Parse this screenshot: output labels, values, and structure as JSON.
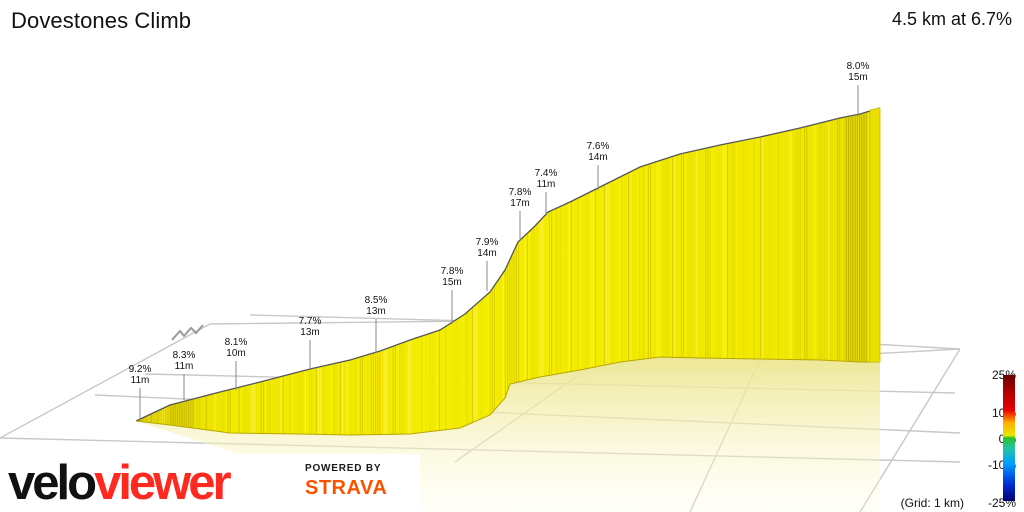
{
  "title": "Dovestones Climb",
  "summary": "4.5 km at 6.7%",
  "scale": {
    "labels": [
      "25%",
      "10%",
      "0%",
      "-10%",
      "-25%"
    ],
    "grid_note": "(Grid: 1 km)"
  },
  "branding": {
    "logo_velo": "velo",
    "logo_viewer": "viewer",
    "powered_by": "POWERED BY",
    "strava": "STRAVA"
  },
  "colors": {
    "profile_fill": "#f4ee00",
    "profile_dark": "#b8a600",
    "ground_shadow": "#f4f0a6",
    "grid": "#c8c8c8",
    "logo_accent": "#ff2a1f",
    "strava": "#fc5200"
  },
  "chart_data": {
    "type": "area",
    "title": "Dovestones Climb",
    "subtitle": "4.5 km at 6.7%",
    "distance_km": 4.5,
    "average_gradient_pct": 6.7,
    "gradient_color_scale": {
      "min_pct": -25,
      "max_pct": 25,
      "ticks": [
        25,
        10,
        0,
        -10,
        -25
      ],
      "colors": [
        "#6b0000",
        "#b30000",
        "#ea0000",
        "#ffb000",
        "#e8e800",
        "#28c028",
        "#23c3a1",
        "#00a0ff",
        "#0030d8",
        "#000070"
      ]
    },
    "grid": true,
    "grid_spacing_km": 1,
    "annotations": [
      {
        "gradient": "9.2%",
        "length": "11m"
      },
      {
        "gradient": "8.3%",
        "length": "11m"
      },
      {
        "gradient": "8.1%",
        "length": "10m"
      },
      {
        "gradient": "7.7%",
        "length": "13m"
      },
      {
        "gradient": "8.5%",
        "length": "13m"
      },
      {
        "gradient": "7.8%",
        "length": "15m"
      },
      {
        "gradient": "7.9%",
        "length": "14m"
      },
      {
        "gradient": "7.8%",
        "length": "17m"
      },
      {
        "gradient": "7.4%",
        "length": "11m"
      },
      {
        "gradient": "7.6%",
        "length": "14m"
      },
      {
        "gradient": "8.0%",
        "length": "15m"
      }
    ]
  }
}
